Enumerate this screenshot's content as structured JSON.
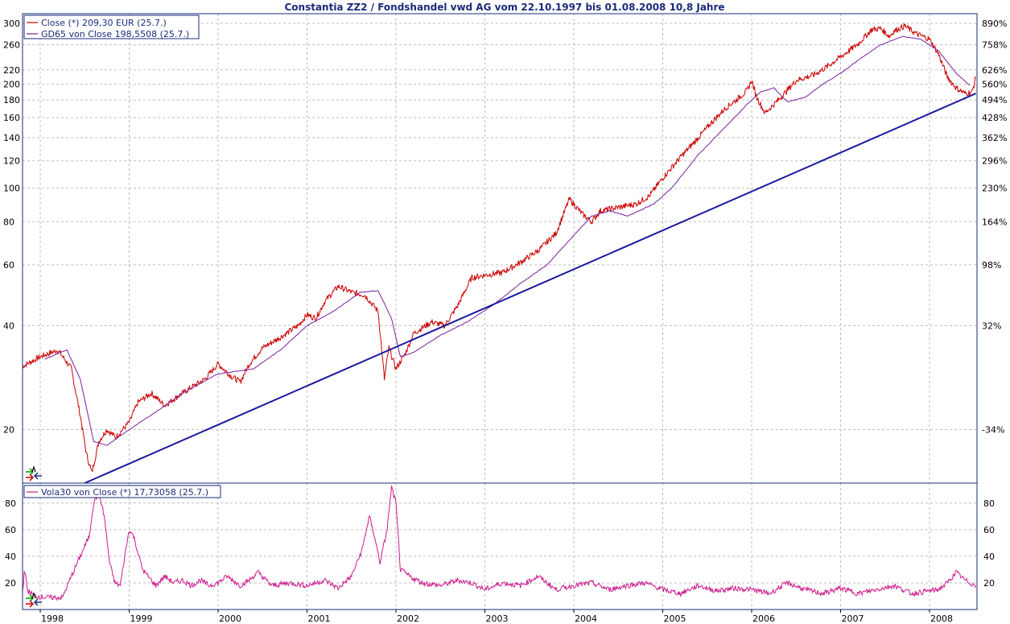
{
  "chart_data": [
    {
      "type": "line",
      "title": "Constantia ZZ2 / Fondshandel vwd AG vom 22.10.1997 bis 01.08.2008 10,8 Jahre",
      "y_scale": "log",
      "ylim": [
        14,
        320
      ],
      "xlim": [
        1997.7,
        2008.65
      ],
      "x_ticks": [
        "1998",
        "1999",
        "2000",
        "2001",
        "2002",
        "2003",
        "2004",
        "2005",
        "2006",
        "2007",
        "2008"
      ],
      "y_ticks_left": [
        "20",
        "40",
        "60",
        "80",
        "100",
        "120",
        "140",
        "160",
        "180",
        "200",
        "220",
        "260",
        "300"
      ],
      "y_ticks_right": [
        "-34%",
        "32%",
        "98%",
        "164%",
        "230%",
        "296%",
        "362%",
        "428%",
        "494%",
        "560%",
        "626%",
        "758%",
        "890%"
      ],
      "legend_position": "top-left",
      "grid": true,
      "series": [
        {
          "name": "Close (*) 209,30 EUR (25.7.)",
          "color": "#cc0000",
          "x": [
            1997.8,
            1998.0,
            1998.2,
            1998.35,
            1998.45,
            1998.52,
            1998.58,
            1998.66,
            1998.75,
            1998.85,
            1999.0,
            1999.1,
            1999.25,
            1999.4,
            1999.55,
            1999.7,
            1999.85,
            2000.0,
            2000.15,
            2000.25,
            2000.35,
            2000.5,
            2000.7,
            2000.9,
            2001.0,
            2001.1,
            2001.2,
            2001.35,
            2001.5,
            2001.65,
            2001.8,
            2001.87,
            2001.92,
            2002.0,
            2002.1,
            2002.2,
            2002.4,
            2002.55,
            2002.7,
            2002.85,
            2003.0,
            2003.2,
            2003.4,
            2003.6,
            2003.8,
            2003.95,
            2004.1,
            2004.2,
            2004.3,
            2004.5,
            2004.7,
            2004.85,
            2005.0,
            2005.2,
            2005.4,
            2005.55,
            2005.7,
            2005.85,
            2005.95,
            2006.0,
            2006.05,
            2006.15,
            2006.3,
            2006.5,
            2006.7,
            2006.85,
            2007.0,
            2007.2,
            2007.35,
            2007.45,
            2007.55,
            2007.6,
            2007.72,
            2007.85,
            2008.0,
            2008.1,
            2008.2,
            2008.3,
            2008.4,
            2008.48,
            2008.52
          ],
          "values": [
            30.5,
            32.5,
            34.0,
            30.0,
            22.0,
            17.0,
            15.0,
            18.5,
            20.0,
            19.0,
            21.0,
            24.0,
            25.5,
            23.5,
            25.0,
            26.5,
            28.0,
            31.0,
            28.5,
            27.5,
            31.0,
            34.5,
            37.0,
            40.0,
            43.0,
            42.0,
            47.0,
            52.0,
            50.0,
            49.0,
            44.0,
            28.0,
            34.5,
            30.0,
            33.0,
            38.0,
            41.0,
            40.0,
            46.0,
            55.0,
            56.0,
            57.0,
            61.0,
            66.0,
            74.0,
            93.0,
            84.0,
            80.0,
            86.0,
            88.0,
            90.0,
            95.0,
            107.0,
            123.0,
            140.0,
            155.0,
            170.0,
            182.0,
            192.0,
            205.0,
            185.0,
            165.0,
            180.0,
            205.0,
            213.0,
            225.0,
            240.0,
            262.0,
            288.0,
            290.0,
            275.0,
            285.0,
            295.0,
            280.0,
            270.0,
            245.0,
            210.0,
            195.0,
            188.0,
            190.0,
            209.3
          ]
        },
        {
          "name": "GD65 von Close 198,5508 (25.7.)",
          "color": "#7a1fa0",
          "x": [
            1998.05,
            1998.3,
            1998.45,
            1998.6,
            1998.75,
            1999.0,
            1999.3,
            1999.6,
            2000.0,
            2000.2,
            2000.4,
            2000.7,
            2001.0,
            2001.3,
            2001.6,
            2001.8,
            2001.95,
            2002.05,
            2002.2,
            2002.5,
            2002.8,
            2003.1,
            2003.4,
            2003.7,
            2004.0,
            2004.2,
            2004.4,
            2004.6,
            2004.9,
            2005.1,
            2005.4,
            2005.7,
            2005.95,
            2006.1,
            2006.25,
            2006.4,
            2006.6,
            2006.8,
            2007.0,
            2007.25,
            2007.45,
            2007.7,
            2007.9,
            2008.1,
            2008.3,
            2008.45
          ],
          "values": [
            32.0,
            34.0,
            28.0,
            18.5,
            18.0,
            20.0,
            22.5,
            25.5,
            29.0,
            29.5,
            30.0,
            34.0,
            40.0,
            44.0,
            50.0,
            50.5,
            42.0,
            32.5,
            33.5,
            37.5,
            41.0,
            46.0,
            53.0,
            60.0,
            73.0,
            83.0,
            86.0,
            83.0,
            90.0,
            100.0,
            125.0,
            150.0,
            175.0,
            190.0,
            195.0,
            178.0,
            183.0,
            200.0,
            215.0,
            240.0,
            260.0,
            275.0,
            270.0,
            250.0,
            215.0,
            198.55
          ]
        },
        {
          "name": "",
          "color": "#1a1aa0",
          "x": [
            1998.5,
            2008.52
          ],
          "values": [
            14.0,
            188.0
          ]
        }
      ]
    },
    {
      "type": "line",
      "title": "",
      "ylim": [
        0,
        95
      ],
      "x_ticks": [
        "1998",
        "1999",
        "2000",
        "2001",
        "2002",
        "2003",
        "2004",
        "2005",
        "2006",
        "2007",
        "2008"
      ],
      "y_ticks_left": [
        "20",
        "40",
        "60",
        "80"
      ],
      "y_ticks_right": [
        "20",
        "40",
        "60",
        "80"
      ],
      "legend_position": "top-left",
      "grid": true,
      "series": [
        {
          "name": "Vola30 von Close (*) 17,73058 (25.7.)",
          "color": "#cc1a8c",
          "x": [
            1997.8,
            1997.82,
            1997.86,
            1997.95,
            1998.1,
            1998.25,
            1998.35,
            1998.45,
            1998.55,
            1998.6,
            1998.66,
            1998.72,
            1998.78,
            1998.84,
            1998.9,
            1998.95,
            1999.0,
            1999.05,
            1999.15,
            1999.3,
            1999.4,
            1999.5,
            1999.6,
            1999.7,
            1999.8,
            1999.9,
            2000.0,
            2000.1,
            2000.25,
            2000.35,
            2000.45,
            2000.6,
            2000.8,
            2001.0,
            2001.2,
            2001.35,
            2001.5,
            2001.62,
            2001.7,
            2001.76,
            2001.82,
            2001.9,
            2001.95,
            2002.0,
            2002.05,
            2002.15,
            2002.3,
            2002.5,
            2002.7,
            2002.85,
            2003.0,
            2003.2,
            2003.4,
            2003.6,
            2003.8,
            2004.0,
            2004.2,
            2004.4,
            2004.6,
            2004.8,
            2005.0,
            2005.2,
            2005.4,
            2005.6,
            2005.8,
            2006.0,
            2006.2,
            2006.4,
            2006.6,
            2006.8,
            2007.0,
            2007.2,
            2007.4,
            2007.6,
            2007.8,
            2008.0,
            2008.1,
            2008.2,
            2008.3,
            2008.4,
            2008.52
          ],
          "values": [
            12,
            30,
            14,
            10,
            9,
            9,
            25,
            40,
            55,
            80,
            88,
            70,
            35,
            20,
            18,
            40,
            60,
            55,
            30,
            18,
            25,
            20,
            22,
            18,
            22,
            18,
            20,
            25,
            18,
            22,
            28,
            18,
            20,
            18,
            22,
            16,
            25,
            45,
            70,
            55,
            35,
            60,
            92,
            80,
            30,
            25,
            20,
            18,
            22,
            20,
            15,
            20,
            18,
            25,
            15,
            18,
            20,
            15,
            18,
            20,
            15,
            12,
            18,
            14,
            16,
            15,
            12,
            20,
            15,
            12,
            16,
            12,
            15,
            18,
            12,
            14,
            15,
            20,
            28,
            22,
            17.73
          ]
        }
      ]
    }
  ]
}
